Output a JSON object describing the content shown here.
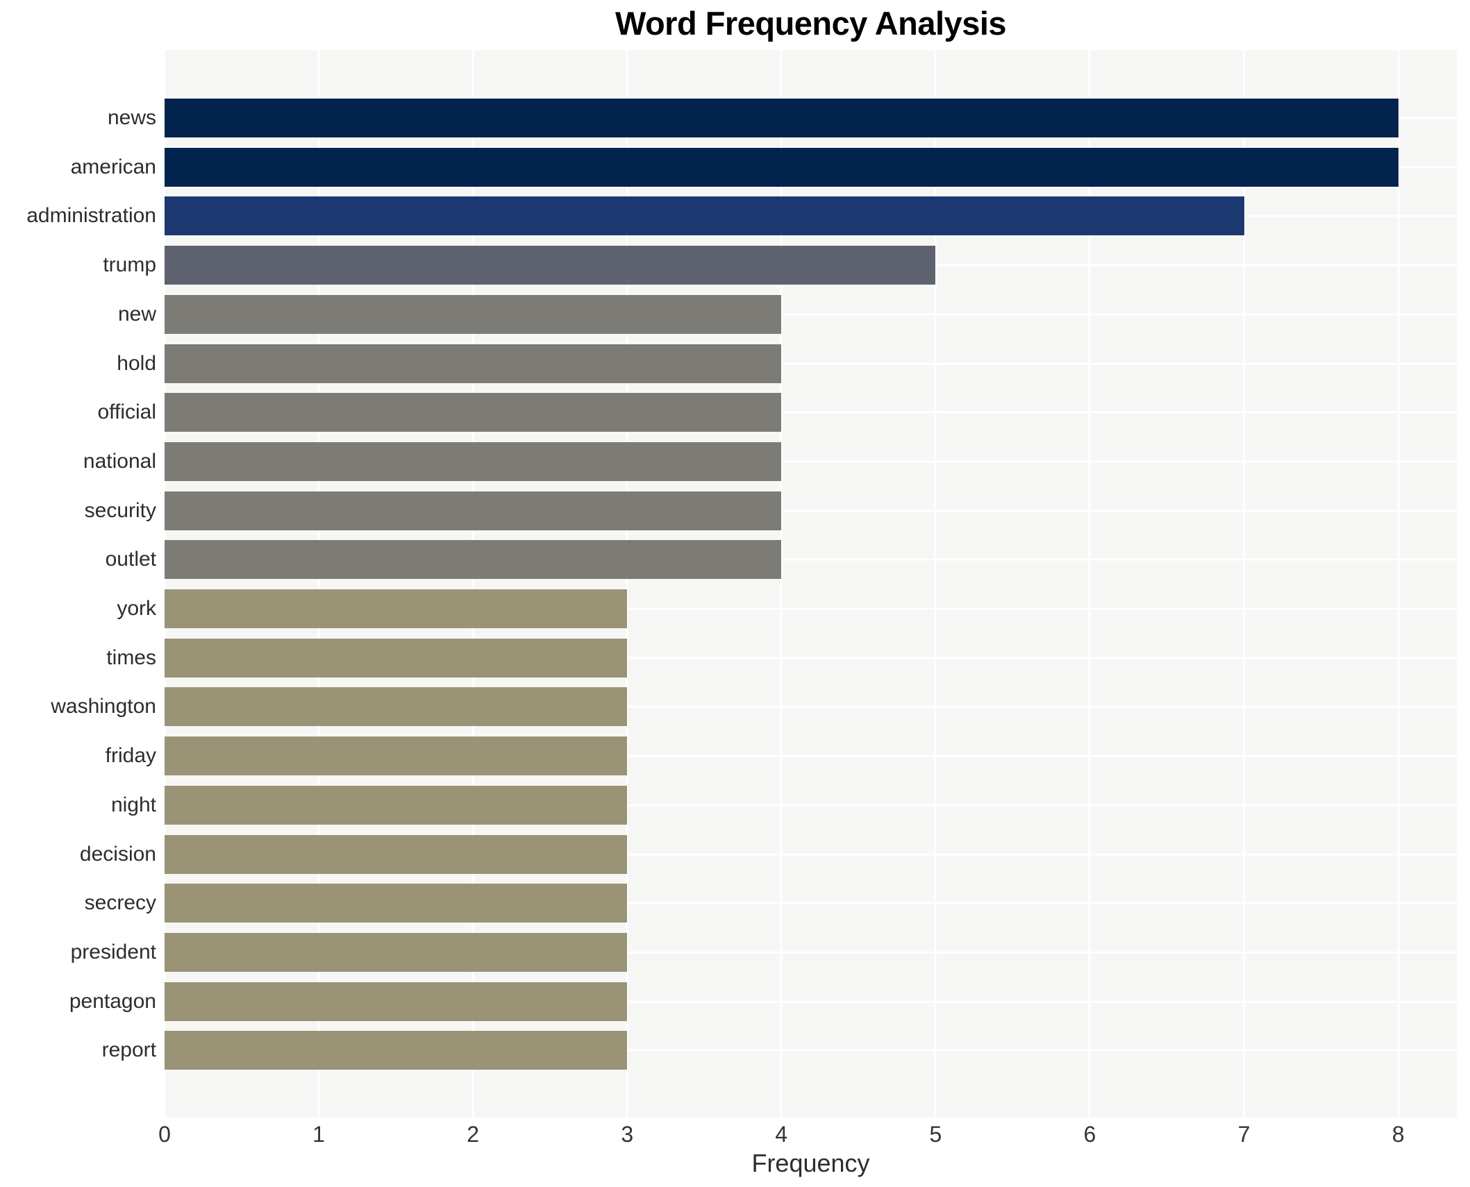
{
  "title": "Word Frequency Analysis",
  "chart_data": {
    "type": "bar",
    "orientation": "horizontal",
    "title": "Word Frequency Analysis",
    "xlabel": "Frequency",
    "ylabel": "",
    "categories": [
      "news",
      "american",
      "administration",
      "trump",
      "new",
      "hold",
      "official",
      "national",
      "security",
      "outlet",
      "york",
      "times",
      "washington",
      "friday",
      "night",
      "decision",
      "secrecy",
      "president",
      "pentagon",
      "report"
    ],
    "values": [
      8,
      8,
      7,
      5,
      4,
      4,
      4,
      4,
      4,
      4,
      3,
      3,
      3,
      3,
      3,
      3,
      3,
      3,
      3,
      3
    ],
    "bar_colors": [
      "#02234e",
      "#02234e",
      "#1c3870",
      "#5f626f",
      "#7c7b75",
      "#7c7b75",
      "#7c7b75",
      "#7c7b75",
      "#7c7b75",
      "#7c7b75",
      "#9b9376",
      "#9b9376",
      "#9b9376",
      "#9b9376",
      "#9b9376",
      "#9b9376",
      "#9b9376",
      "#9b9376",
      "#9b9376",
      "#9b9376"
    ],
    "xticks": [
      0,
      1,
      2,
      3,
      4,
      5,
      6,
      7,
      8
    ],
    "xlim": [
      0,
      8.38
    ],
    "grid": "on",
    "grid_color": "#ffffff",
    "panel_background": "#f6f6f5",
    "legend": "none"
  }
}
